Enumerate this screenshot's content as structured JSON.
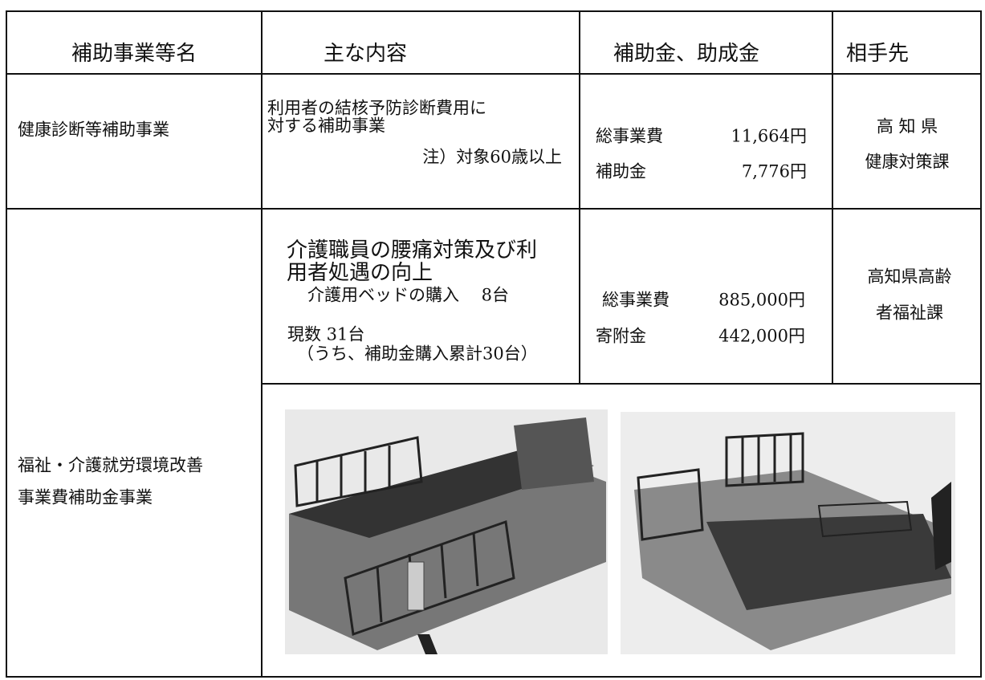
{
  "header": {
    "columns": [
      "補助事業等名",
      "主な内容",
      "補助金、助成金",
      "相手先"
    ]
  },
  "rows": [
    {
      "name": [
        "健康診断等補助事業"
      ],
      "content": [
        "利用者の結核予防診断費用に",
        "対する補助事業"
      ],
      "note": "注）対象60歳以上",
      "amounts": [
        {
          "label": "総事業費",
          "amount": "11,664円"
        },
        {
          "label": "補助金",
          "amount": "7,776円"
        }
      ],
      "partner": [
        "高 知 県",
        "健康対策課"
      ]
    },
    {
      "name": [
        "福祉・介護就労環境改善",
        "事業費補助金事業"
      ],
      "heading": [
        "介護職員の腰痛対策及び利",
        "用者処遇の向上"
      ],
      "content": [
        "介護用ベッドの購入　 8台",
        "現数 31台",
        "（うち、補助金購入累計30台）"
      ],
      "amounts": [
        {
          "label": "総事業費",
          "amount": "885,000円"
        },
        {
          "label": "寄附金",
          "amount": "442,000円"
        }
      ],
      "partner": [
        "高知県高齢",
        "者福祉課"
      ]
    }
  ]
}
